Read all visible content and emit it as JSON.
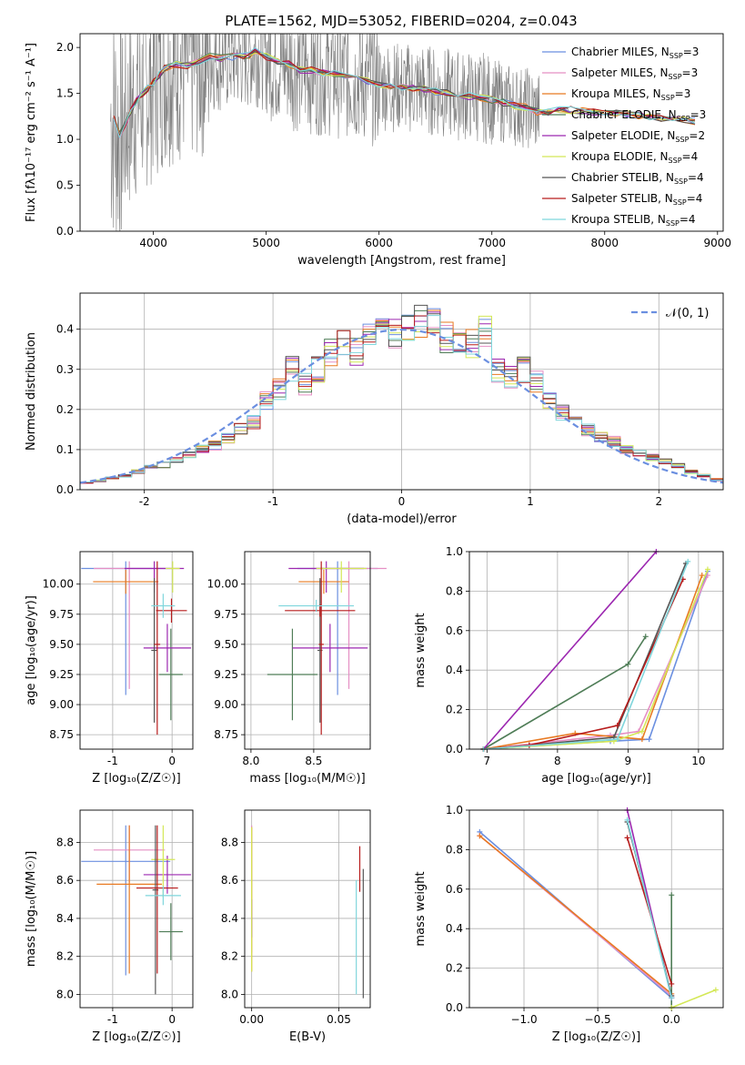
{
  "title": "PLATE=1562, MJD=53052, FIBERID=0204, z=0.043",
  "colors": {
    "chabrier_miles": "#6b8fe0",
    "salpeter_miles": "#e58fc4",
    "kroupa_miles": "#e87a22",
    "chabrier_elodie": "#4f7d57",
    "salpeter_elodie": "#9c27b0",
    "kroupa_elodie": "#d4e857",
    "chabrier_stelib": "#555555",
    "salpeter_stelib": "#b71c1c",
    "kroupa_stelib": "#7fd6dc",
    "data": "#808080",
    "normal": "#6b8fe0",
    "grid": "#b0b0b0"
  },
  "chart_data": [
    {
      "id": "spectrum",
      "type": "line",
      "xlabel": "wavelength [Angstrom, rest frame]",
      "ylabel": "Flux [fλ10⁻¹⁷ erg cm⁻² s⁻¹ A⁻¹]",
      "xlim": [
        3350,
        9050
      ],
      "ylim": [
        0,
        2.15
      ],
      "xticks": [
        4000,
        5000,
        6000,
        7000,
        8000,
        9000
      ],
      "yticks": [
        0.0,
        0.5,
        1.0,
        1.5,
        2.0
      ],
      "grid": false,
      "legend_position": "right",
      "legend": [
        {
          "key": "chabrier_miles",
          "label": "Chabrier MILES, N",
          "sub": "SSP",
          "suffix": "=3"
        },
        {
          "key": "salpeter_miles",
          "label": "Salpeter MILES, N",
          "sub": "SSP",
          "suffix": "=3"
        },
        {
          "key": "kroupa_miles",
          "label": "Kroupa MILES, N",
          "sub": "SSP",
          "suffix": "=3"
        },
        {
          "key": "chabrier_elodie",
          "label": "Chabrier ELODIE, N",
          "sub": "SSP",
          "suffix": "=3"
        },
        {
          "key": "salpeter_elodie",
          "label": "Salpeter ELODIE, N",
          "sub": "SSP",
          "suffix": "=2"
        },
        {
          "key": "kroupa_elodie",
          "label": "Kroupa ELODIE, N",
          "sub": "SSP",
          "suffix": "=4"
        },
        {
          "key": "chabrier_stelib",
          "label": "Chabrier STELIB, N",
          "sub": "SSP",
          "suffix": "=4"
        },
        {
          "key": "salpeter_stelib",
          "label": "Salpeter STELIB, N",
          "sub": "SSP",
          "suffix": "=4"
        },
        {
          "key": "kroupa_stelib",
          "label": "Kroupa STELIB, N",
          "sub": "SSP",
          "suffix": "=4"
        }
      ],
      "model_curve": {
        "x": [
          3650,
          3700,
          3750,
          3800,
          3850,
          3900,
          3950,
          4000,
          4050,
          4100,
          4200,
          4300,
          4400,
          4500,
          4600,
          4700,
          4800,
          4850,
          4900,
          5000,
          5100,
          5200,
          5300,
          5400,
          5500,
          5600,
          5700,
          5800,
          5900,
          6000,
          6100,
          6200,
          6300,
          6400,
          6500,
          6600,
          6700,
          6800,
          6900,
          7000,
          7100,
          7200,
          7300,
          7400,
          7500,
          7600,
          7700,
          7800,
          7900,
          8000,
          8100,
          8200,
          8300,
          8400,
          8500,
          8600,
          8700,
          8800
        ],
        "y": [
          1.22,
          1.05,
          1.15,
          1.3,
          1.42,
          1.5,
          1.55,
          1.62,
          1.7,
          1.78,
          1.82,
          1.8,
          1.85,
          1.9,
          1.88,
          1.9,
          1.9,
          1.92,
          1.96,
          1.9,
          1.85,
          1.82,
          1.75,
          1.75,
          1.72,
          1.72,
          1.68,
          1.66,
          1.63,
          1.6,
          1.58,
          1.56,
          1.56,
          1.55,
          1.52,
          1.5,
          1.48,
          1.47,
          1.46,
          1.43,
          1.4,
          1.37,
          1.35,
          1.3,
          1.3,
          1.32,
          1.32,
          1.31,
          1.3,
          1.29,
          1.28,
          1.28,
          1.26,
          1.24,
          1.22,
          1.22,
          1.22,
          1.2
        ]
      }
    },
    {
      "id": "residuals",
      "type": "histogram",
      "xlabel": "(data-model)/error",
      "ylabel": "Normed distribution",
      "xlim": [
        -2.5,
        2.5
      ],
      "ylim": [
        0,
        0.49
      ],
      "xticks": [
        -2,
        -1,
        0,
        1,
        2
      ],
      "yticks": [
        0.0,
        0.1,
        0.2,
        0.3,
        0.4
      ],
      "grid": true,
      "legend": "𝒩(0, 1)",
      "legend_position": "top-right",
      "bin_centers": [
        -2.45,
        -2.35,
        -2.25,
        -2.15,
        -2.05,
        -1.95,
        -1.85,
        -1.75,
        -1.65,
        -1.55,
        -1.45,
        -1.35,
        -1.25,
        -1.15,
        -1.05,
        -0.95,
        -0.85,
        -0.75,
        -0.65,
        -0.55,
        -0.45,
        -0.35,
        -0.25,
        -0.15,
        -0.05,
        0.05,
        0.15,
        0.25,
        0.35,
        0.45,
        0.55,
        0.65,
        0.75,
        0.85,
        0.95,
        1.05,
        1.15,
        1.25,
        1.35,
        1.45,
        1.55,
        1.65,
        1.75,
        1.85,
        1.95,
        2.05,
        2.15,
        2.25,
        2.35,
        2.45
      ],
      "base_values": [
        0.018,
        0.022,
        0.03,
        0.035,
        0.045,
        0.055,
        0.062,
        0.075,
        0.085,
        0.1,
        0.11,
        0.13,
        0.155,
        0.17,
        0.22,
        0.25,
        0.3,
        0.265,
        0.3,
        0.34,
        0.36,
        0.34,
        0.38,
        0.4,
        0.39,
        0.4,
        0.42,
        0.41,
        0.38,
        0.38,
        0.36,
        0.39,
        0.3,
        0.28,
        0.3,
        0.27,
        0.22,
        0.19,
        0.17,
        0.15,
        0.13,
        0.12,
        0.1,
        0.09,
        0.08,
        0.07,
        0.06,
        0.045,
        0.035,
        0.025
      ]
    },
    {
      "id": "age_vs_z",
      "type": "scatter",
      "xlabel": "Z [log₁₀(Z/Z☉)]",
      "ylabel": "age  [log₁₀(age/yr)]",
      "xlim": [
        -1.55,
        0.35
      ],
      "ylim": [
        8.63,
        10.27
      ],
      "xticks": [
        -1,
        0
      ],
      "yticks": [
        8.75,
        9.0,
        9.25,
        9.5,
        9.75,
        10.0
      ],
      "grid": true,
      "points": [
        {
          "key": "chabrier_miles",
          "x": -0.78,
          "y": 10.13,
          "xerr": 0.75,
          "yerr": 1.05
        },
        {
          "key": "salpeter_miles",
          "x": -0.72,
          "y": 10.13,
          "xerr": 0.6,
          "yerr": 1.0
        },
        {
          "key": "kroupa_miles",
          "x": -0.78,
          "y": 10.02,
          "xerr": 0.55,
          "yerr": 0.1
        },
        {
          "key": "chabrier_elodie",
          "x": -0.02,
          "y": 9.25,
          "xerr": 0.2,
          "yerr": 0.38
        },
        {
          "key": "salpeter_elodie",
          "x": -0.3,
          "y": 10.13,
          "xerr": 0.5,
          "yerr": 0.2
        },
        {
          "key": "salpeter_elodie",
          "x": -0.08,
          "y": 9.47,
          "xerr": 0.4,
          "yerr": 0.2
        },
        {
          "key": "kroupa_elodie",
          "x": 0.01,
          "y": 10.13,
          "xerr": 0.12,
          "yerr": 0.2
        },
        {
          "key": "chabrier_stelib",
          "x": -0.3,
          "y": 9.45,
          "xerr": 0.05,
          "yerr": 0.6
        },
        {
          "key": "salpeter_stelib",
          "x": -0.25,
          "y": 9.5,
          "xerr": 0.05,
          "yerr": 0.75
        },
        {
          "key": "salpeter_stelib",
          "x": -0.01,
          "y": 9.78,
          "xerr": 0.26,
          "yerr": 0.1
        },
        {
          "key": "kroupa_stelib",
          "x": -0.15,
          "y": 9.82,
          "xerr": 0.2,
          "yerr": 0.1
        }
      ]
    },
    {
      "id": "age_vs_mass",
      "type": "scatter",
      "xlabel": "mass [log₁₀(M/M☉)]",
      "ylabel": "",
      "xlim": [
        7.95,
        8.95
      ],
      "ylim": [
        8.63,
        10.27
      ],
      "xticks": [
        8.0,
        8.5
      ],
      "yticks": [
        8.75,
        9.0,
        9.25,
        9.5,
        9.75,
        10.0
      ],
      "grid": true,
      "points": [
        {
          "key": "chabrier_miles",
          "x": 8.69,
          "y": 10.13,
          "xerr": 0.32,
          "yerr": 1.05
        },
        {
          "key": "salpeter_miles",
          "x": 8.78,
          "y": 10.13,
          "xerr": 0.3,
          "yerr": 1.0
        },
        {
          "key": "kroupa_miles",
          "x": 8.58,
          "y": 10.02,
          "xerr": 0.2,
          "yerr": 0.1
        },
        {
          "key": "chabrier_elodie",
          "x": 8.33,
          "y": 9.25,
          "xerr": 0.2,
          "yerr": 0.38
        },
        {
          "key": "salpeter_elodie",
          "x": 8.63,
          "y": 9.47,
          "xerr": 0.3,
          "yerr": 0.2
        },
        {
          "key": "salpeter_elodie",
          "x": 8.6,
          "y": 10.13,
          "xerr": 0.3,
          "yerr": 0.2
        },
        {
          "key": "kroupa_elodie",
          "x": 8.72,
          "y": 10.13,
          "xerr": 0.2,
          "yerr": 0.2
        },
        {
          "key": "chabrier_stelib",
          "x": 8.55,
          "y": 9.45,
          "xerr": 0.02,
          "yerr": 0.6
        },
        {
          "key": "salpeter_stelib",
          "x": 8.56,
          "y": 9.5,
          "xerr": 0.02,
          "yerr": 0.75
        },
        {
          "key": "salpeter_stelib",
          "x": 8.55,
          "y": 9.78,
          "xerr": 0.28,
          "yerr": 0.05
        },
        {
          "key": "kroupa_stelib",
          "x": 8.52,
          "y": 9.82,
          "xerr": 0.3,
          "yerr": 0.05
        }
      ]
    },
    {
      "id": "weight_vs_age",
      "type": "line",
      "xlabel": "age  [log₁₀(age/yr)]",
      "ylabel": "mass weight",
      "xlim": [
        6.75,
        10.35
      ],
      "ylim": [
        0,
        1.0
      ],
      "xticks": [
        7,
        8,
        9,
        10
      ],
      "yticks": [
        0.0,
        0.2,
        0.4,
        0.6,
        0.8,
        1.0
      ],
      "grid": true,
      "series": [
        {
          "key": "chabrier_miles",
          "x": [
            6.95,
            8.75,
            9.3,
            10.13
          ],
          "y": [
            0.0,
            0.04,
            0.05,
            0.9
          ]
        },
        {
          "key": "salpeter_miles",
          "x": [
            6.95,
            8.75,
            9.15,
            10.13
          ],
          "y": [
            0.0,
            0.07,
            0.09,
            0.88
          ]
        },
        {
          "key": "kroupa_miles",
          "x": [
            6.95,
            8.25,
            9.2,
            10.05
          ],
          "y": [
            0.0,
            0.08,
            0.05,
            0.88
          ]
        },
        {
          "key": "chabrier_elodie",
          "x": [
            6.95,
            9.0,
            9.25
          ],
          "y": [
            0.0,
            0.43,
            0.57
          ]
        },
        {
          "key": "salpeter_elodie",
          "x": [
            6.95,
            9.4
          ],
          "y": [
            0.0,
            1.0
          ]
        },
        {
          "key": "kroupa_elodie",
          "x": [
            6.95,
            8.8,
            9.2,
            10.13
          ],
          "y": [
            0.0,
            0.04,
            0.09,
            0.91
          ]
        },
        {
          "key": "chabrier_stelib",
          "x": [
            6.95,
            7.6,
            8.8,
            9.82
          ],
          "y": [
            0.0,
            0.02,
            0.06,
            0.94
          ]
        },
        {
          "key": "salpeter_stelib",
          "x": [
            6.95,
            7.6,
            8.85,
            9.78
          ],
          "y": [
            0.0,
            0.02,
            0.12,
            0.86
          ]
        },
        {
          "key": "kroupa_stelib",
          "x": [
            6.95,
            8.85,
            9.85
          ],
          "y": [
            0.0,
            0.05,
            0.95
          ]
        }
      ]
    },
    {
      "id": "mass_vs_z",
      "type": "scatter",
      "xlabel": "Z [log₁₀(Z/Z☉)]",
      "ylabel": "mass [log₁₀(M/M☉)]",
      "xlim": [
        -1.55,
        0.35
      ],
      "ylim": [
        7.93,
        8.97
      ],
      "xticks": [
        -1,
        0
      ],
      "yticks": [
        8.0,
        8.2,
        8.4,
        8.6,
        8.8
      ],
      "grid": true,
      "points": [
        {
          "key": "chabrier_miles",
          "x": -0.78,
          "y": 8.7,
          "xerr": 0.75,
          "yerr": 0.6
        },
        {
          "key": "salpeter_miles",
          "x": -0.72,
          "y": 8.76,
          "xerr": 0.6,
          "yerr": 0.17
        },
        {
          "key": "kroupa_miles",
          "x": -0.72,
          "y": 8.58,
          "xerr": 0.55,
          "yerr": 0.47
        },
        {
          "key": "chabrier_elodie",
          "x": -0.02,
          "y": 8.33,
          "xerr": 0.2,
          "yerr": 0.15
        },
        {
          "key": "salpeter_elodie",
          "x": -0.08,
          "y": 8.63,
          "xerr": 0.4,
          "yerr": 0.1
        },
        {
          "key": "kroupa_elodie",
          "x": -0.15,
          "y": 8.71,
          "xerr": 0.2,
          "yerr": 0.2
        },
        {
          "key": "chabrier_stelib",
          "x": -0.28,
          "y": 8.55,
          "xerr": 0.05,
          "yerr": 0.55
        },
        {
          "key": "salpeter_stelib",
          "x": -0.25,
          "y": 8.56,
          "xerr": 0.35,
          "yerr": 0.45
        },
        {
          "key": "kroupa_stelib",
          "x": -0.15,
          "y": 8.52,
          "xerr": 0.3,
          "yerr": 0.05
        }
      ]
    },
    {
      "id": "mass_vs_ebv",
      "type": "scatter",
      "xlabel": "E(B-V)",
      "ylabel": "",
      "xlim": [
        -0.004,
        0.068
      ],
      "ylim": [
        7.93,
        8.97
      ],
      "xticks": [
        0.0,
        0.05
      ],
      "yticks": [
        8.0,
        8.2,
        8.4,
        8.6,
        8.8
      ],
      "grid": true,
      "points": [
        {
          "key": "salpeter_miles",
          "x": 0.0,
          "y": 8.58,
          "xerr": 0.0,
          "yerr": 0.36
        },
        {
          "key": "kroupa_miles",
          "x": 0.0,
          "y": 8.5,
          "xerr": 0.0,
          "yerr": 0.38
        },
        {
          "key": "salpeter_elodie",
          "x": 0.0,
          "y": 8.4,
          "xerr": 0.0,
          "yerr": 0.1
        },
        {
          "key": "kroupa_elodie",
          "x": 0.0,
          "y": 8.5,
          "xerr": 0.0,
          "yerr": 0.38
        },
        {
          "key": "salpeter_stelib",
          "x": 0.062,
          "y": 8.66,
          "xerr": 0.0,
          "yerr": 0.12
        },
        {
          "key": "kroupa_stelib",
          "x": 0.06,
          "y": 8.3,
          "xerr": 0.0,
          "yerr": 0.3
        },
        {
          "key": "chabrier_stelib",
          "x": 0.064,
          "y": 8.32,
          "xerr": 0.0,
          "yerr": 0.34
        }
      ]
    },
    {
      "id": "weight_vs_z",
      "type": "line",
      "xlabel": "Z [log₁₀(Z/Z☉)]",
      "ylabel": "mass weight",
      "xlim": [
        -1.37,
        0.35
      ],
      "ylim": [
        0,
        1.0
      ],
      "xticks": [
        -1.0,
        -0.5,
        0.0
      ],
      "yticks": [
        0.0,
        0.2,
        0.4,
        0.6,
        0.8,
        1.0
      ],
      "grid": true,
      "series": [
        {
          "key": "chabrier_miles",
          "x": [
            -1.3,
            0.0
          ],
          "y": [
            0.89,
            0.05
          ]
        },
        {
          "key": "salpeter_miles",
          "x": [
            -1.3,
            0.0
          ],
          "y": [
            0.87,
            0.06
          ]
        },
        {
          "key": "kroupa_miles",
          "x": [
            -1.3,
            0.0
          ],
          "y": [
            0.87,
            0.07
          ]
        },
        {
          "key": "chabrier_elodie",
          "x": [
            0.0,
            0.0
          ],
          "y": [
            0.0,
            0.57
          ]
        },
        {
          "key": "salpeter_elodie",
          "x": [
            -0.3,
            0.0
          ],
          "y": [
            1.0,
            0.05
          ]
        },
        {
          "key": "kroupa_elodie",
          "x": [
            0.0,
            0.3
          ],
          "y": [
            0.0,
            0.09
          ]
        },
        {
          "key": "chabrier_stelib",
          "x": [
            -0.3,
            0.0
          ],
          "y": [
            0.94,
            0.06
          ]
        },
        {
          "key": "salpeter_stelib",
          "x": [
            -0.3,
            0.0
          ],
          "y": [
            0.86,
            0.12
          ]
        },
        {
          "key": "kroupa_stelib",
          "x": [
            -0.3,
            0.0
          ],
          "y": [
            0.95,
            0.05
          ]
        }
      ]
    }
  ]
}
